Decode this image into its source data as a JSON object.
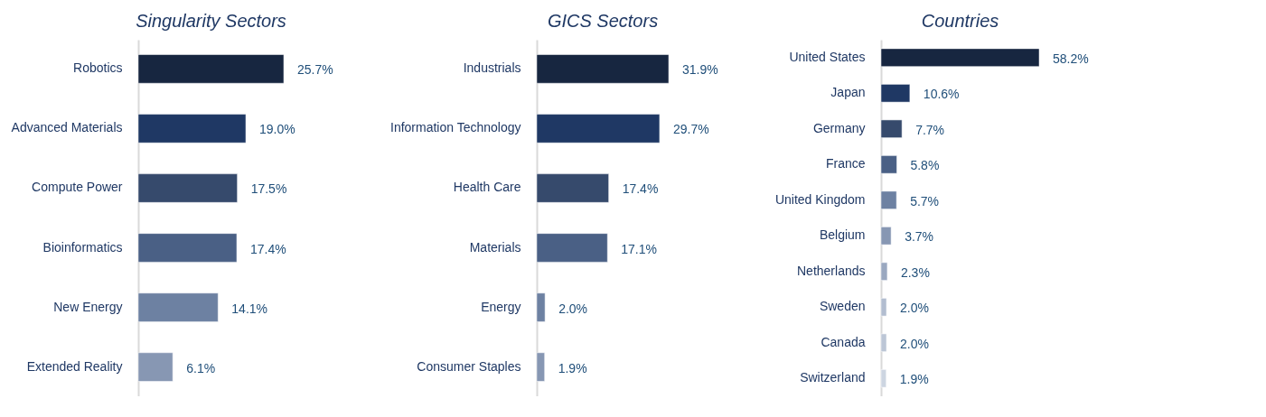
{
  "chart_data": [
    {
      "type": "bar",
      "orientation": "horizontal",
      "title": "Singularity Sectors",
      "tick_labels": "y",
      "categories": [
        "Robotics",
        "Advanced Materials",
        "Compute Power",
        "Bioinformatics",
        "New Energy",
        "Extended Reality"
      ],
      "values": [
        25.7,
        19.0,
        17.5,
        17.4,
        14.1,
        6.1
      ],
      "value_labels": [
        "25.7%",
        "19.0%",
        "17.5%",
        "17.4%",
        "14.1%",
        "6.1%"
      ],
      "colors": [
        "#172640",
        "#1f3864",
        "#364a6c",
        "#4a6085",
        "#6d81a2",
        "#8797b3"
      ]
    },
    {
      "type": "bar",
      "orientation": "horizontal",
      "title": "GICS Sectors",
      "tick_labels": "y",
      "categories": [
        "Industrials",
        "Information Technology",
        "Health Care",
        "Materials",
        "Energy",
        "Consumer Staples"
      ],
      "values": [
        31.9,
        29.7,
        17.4,
        17.1,
        2.0,
        1.9
      ],
      "value_labels": [
        "31.9%",
        "29.7%",
        "17.4%",
        "17.1%",
        "2.0%",
        "1.9%"
      ],
      "colors": [
        "#172640",
        "#1f3864",
        "#364a6c",
        "#4a6085",
        "#6d81a2",
        "#8797b3"
      ]
    },
    {
      "type": "bar",
      "orientation": "horizontal",
      "title": "Countries",
      "tick_labels": "y",
      "categories": [
        "United States",
        "Japan",
        "Germany",
        "France",
        "United Kingdom",
        "Belgium",
        "Netherlands",
        "Sweden",
        "Canada",
        "Switzerland"
      ],
      "values": [
        58.2,
        10.6,
        7.7,
        5.8,
        5.7,
        3.7,
        2.3,
        2.0,
        2.0,
        1.9
      ],
      "value_labels": [
        "58.2%",
        "10.6%",
        "7.7%",
        "5.8%",
        "5.7%",
        "3.7%",
        "2.3%",
        "2.0%",
        "2.0%",
        "1.9%"
      ],
      "colors": [
        "#172640",
        "#1f3864",
        "#364a6c",
        "#4a6085",
        "#6d81a2",
        "#8797b3",
        "#9aa8c0",
        "#b2bdd0",
        "#bcc6d6",
        "#cdd5e1"
      ]
    }
  ]
}
